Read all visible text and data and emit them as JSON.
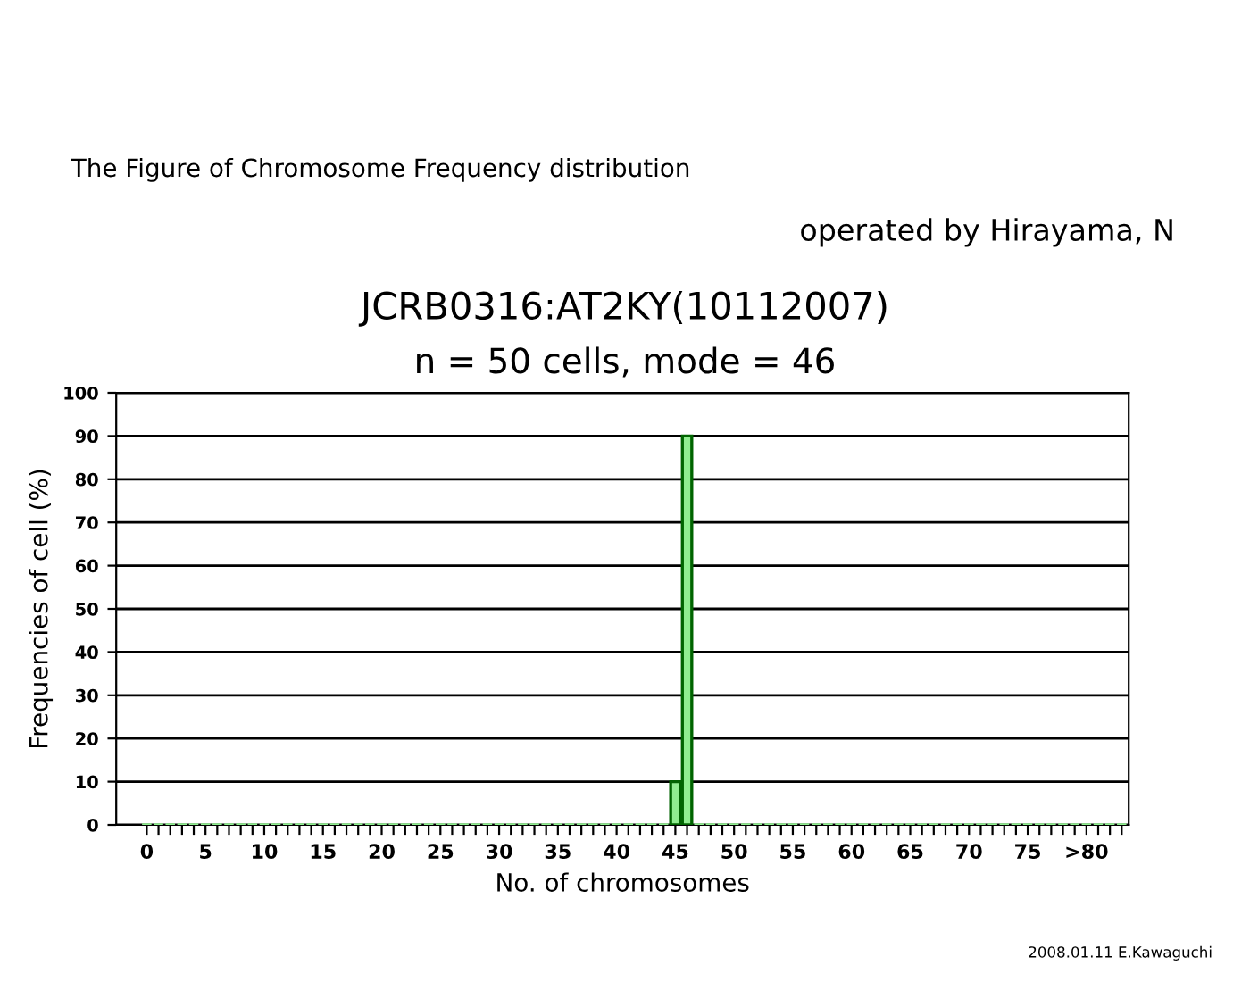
{
  "chart_data": {
    "type": "bar",
    "title": "JCRB0316:AT2KY(10112007)",
    "subtitle": "n = 50 cells, mode = 46",
    "xlabel": "No. of chromosomes",
    "ylabel": "Frequencies of cell (%)",
    "annotations": [
      "The Figure of Chromosome Frequency distribution",
      "operated by Hirayama, N",
      "2008.01.11 E.Kawaguchi"
    ],
    "categories": [
      "0",
      null,
      null,
      null,
      null,
      "5",
      null,
      null,
      null,
      null,
      "10",
      null,
      null,
      null,
      null,
      "15",
      null,
      null,
      null,
      null,
      "20",
      null,
      null,
      null,
      null,
      "25",
      null,
      null,
      null,
      null,
      "30",
      null,
      null,
      null,
      null,
      "35",
      null,
      null,
      null,
      null,
      "40",
      null,
      null,
      null,
      null,
      "45",
      null,
      null,
      null,
      null,
      "50",
      null,
      null,
      null,
      null,
      "55",
      null,
      null,
      null,
      null,
      "60",
      null,
      null,
      null,
      null,
      "65",
      null,
      null,
      null,
      null,
      "70",
      null,
      null,
      null,
      null,
      "75",
      null,
      null,
      null,
      null,
      ">80",
      null,
      null,
      null
    ],
    "values": [
      0,
      0,
      0,
      0,
      0,
      0,
      0,
      0,
      0,
      0,
      0,
      0,
      0,
      0,
      0,
      0,
      0,
      0,
      0,
      0,
      0,
      0,
      0,
      0,
      0,
      0,
      0,
      0,
      0,
      0,
      0,
      0,
      0,
      0,
      0,
      0,
      0,
      0,
      0,
      0,
      0,
      0,
      0,
      0,
      0,
      10,
      90,
      0,
      0,
      0,
      0,
      0,
      0,
      0,
      0,
      0,
      0,
      0,
      0,
      0,
      0,
      0,
      0,
      0,
      0,
      0,
      0,
      0,
      0,
      0,
      0,
      0,
      0,
      0,
      0,
      0,
      0,
      0,
      0,
      0,
      0,
      0,
      0,
      0
    ],
    "color": "#90ee90",
    "ylim": [
      0,
      100
    ],
    "yticks": [
      0,
      10,
      20,
      30,
      40,
      50,
      60,
      70,
      80,
      90,
      100
    ],
    "grid": "y",
    "legend": false
  }
}
